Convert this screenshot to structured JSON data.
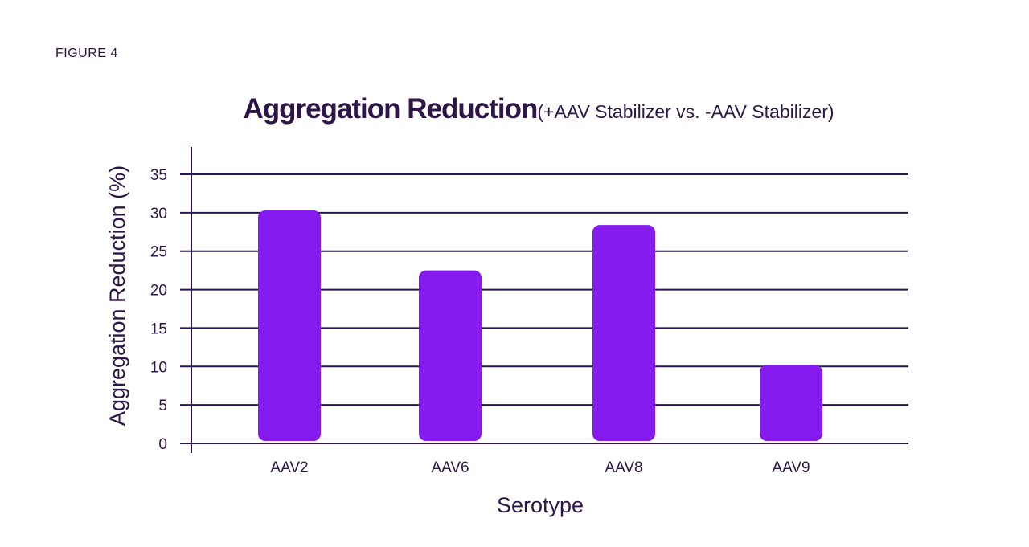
{
  "figure_label": "FIGURE 4",
  "chart_data": {
    "type": "bar",
    "title": "Aggregation Reduction",
    "subtitle": "(+AAV Stabilizer vs. -AAV Stabilizer)",
    "xlabel": "Serotype",
    "ylabel": "Aggregation Reduction (%)",
    "categories": [
      "AAV2",
      "AAV6",
      "AAV8",
      "AAV9"
    ],
    "values": [
      30.3,
      22.5,
      28.4,
      10.2
    ],
    "ylim": [
      0,
      35
    ],
    "yticks": [
      0,
      5,
      10,
      15,
      20,
      25,
      30,
      35
    ],
    "grid": true,
    "colors": {
      "bar": "#851bef",
      "text": "#2d1548",
      "grid": "#2d1548"
    }
  }
}
